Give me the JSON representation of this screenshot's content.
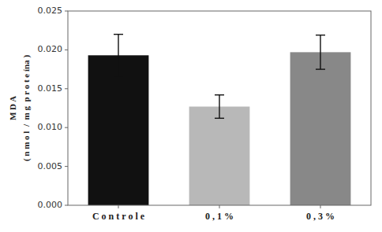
{
  "chart_data": {
    "type": "bar",
    "categories": [
      "C o n t r o l e",
      "0 , 1 %",
      "0 , 3 %"
    ],
    "values": [
      0.0193,
      0.0127,
      0.0197
    ],
    "errors": [
      0.0027,
      0.0015,
      0.0022
    ],
    "colors": [
      "#111111",
      "#b8b8b8",
      "#888888"
    ],
    "ylabel": "M D A\n( n m o l  /  m g  p r o t e ína )",
    "ylim": [
      0,
      0.025
    ],
    "yticks": [
      {
        "value": 0,
        "label": "0.000"
      },
      0.005,
      {
        "value": 0.01,
        "label": "0.010"
      },
      0.015,
      {
        "value": 0.02,
        "label": "0.020"
      },
      0.025
    ],
    "grid": false
  }
}
